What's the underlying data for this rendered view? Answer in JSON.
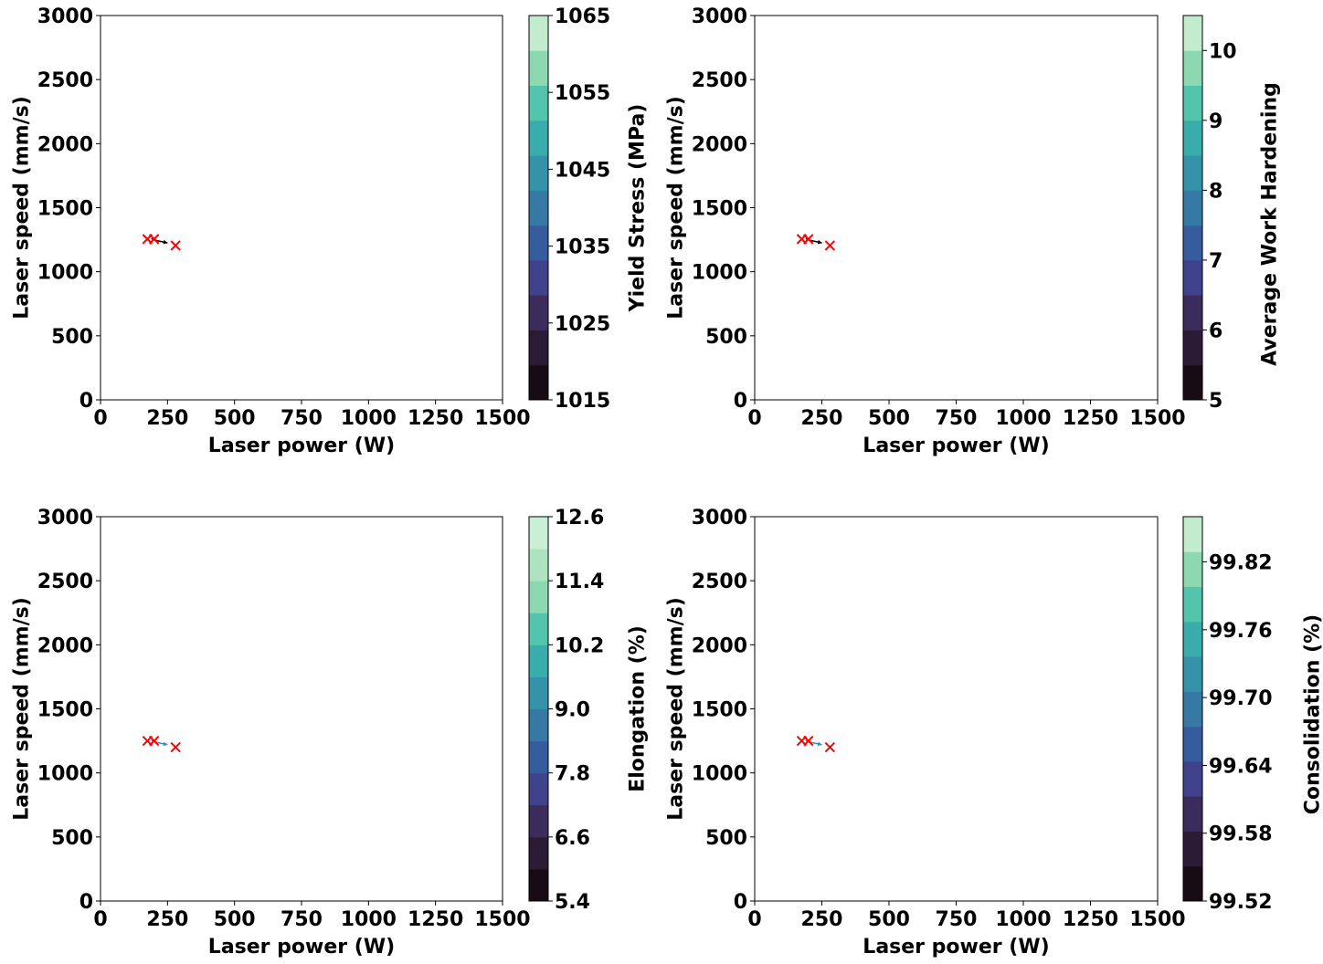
{
  "chart_data": [
    {
      "type": "scatter",
      "xlabel": "Laser power (W)",
      "ylabel": "Laser speed (mm/s)",
      "xlim": [
        0,
        1500
      ],
      "ylim": [
        0,
        3000
      ],
      "xticks": [
        "0",
        "250",
        "500",
        "750",
        "1000",
        "1250",
        "1500"
      ],
      "yticks": [
        "0",
        "500",
        "1000",
        "1500",
        "2000",
        "2500",
        "3000"
      ],
      "points": [
        {
          "x": 175,
          "y": 1255
        },
        {
          "x": 200,
          "y": 1255
        },
        {
          "x": 280,
          "y": 1205
        }
      ],
      "path": [
        {
          "x": 190,
          "y": 1260
        },
        {
          "x": 200,
          "y": 1248
        },
        {
          "x": 250,
          "y": 1225
        }
      ],
      "path_color": "#000000",
      "marker_color": "#ff0000",
      "colorbar": {
        "label": "Yield Stress (MPa)",
        "min": 1015,
        "max": 1065,
        "ticks": [
          "1015",
          "1025",
          "1035",
          "1045",
          "1055",
          "1065"
        ],
        "levels": 10,
        "colors": [
          "#170c14",
          "#2b1b35",
          "#3b2c5b",
          "#40428b",
          "#375c9e",
          "#3579a4",
          "#3493a8",
          "#39acab",
          "#52c5ac",
          "#8bd8b1",
          "#c2eccd"
        ]
      }
    },
    {
      "type": "scatter",
      "xlabel": "Laser power (W)",
      "ylabel": "Laser speed (mm/s)",
      "xlim": [
        0,
        1500
      ],
      "ylim": [
        0,
        3000
      ],
      "xticks": [
        "0",
        "250",
        "500",
        "750",
        "1000",
        "1250",
        "1500"
      ],
      "yticks": [
        "0",
        "500",
        "1000",
        "1500",
        "2000",
        "2500",
        "3000"
      ],
      "points": [
        {
          "x": 175,
          "y": 1255
        },
        {
          "x": 200,
          "y": 1255
        },
        {
          "x": 280,
          "y": 1205
        }
      ],
      "path": [
        {
          "x": 190,
          "y": 1260
        },
        {
          "x": 200,
          "y": 1248
        },
        {
          "x": 250,
          "y": 1225
        }
      ],
      "path_color": "#000000",
      "marker_color": "#ff0000",
      "colorbar": {
        "label": "Average Work Hardening",
        "min": 5,
        "max": 10.5,
        "ticks": [
          "5",
          "6",
          "7",
          "8",
          "9",
          "10"
        ],
        "tick_values": [
          5,
          6,
          7,
          8,
          9,
          10
        ],
        "levels": 11,
        "colors": [
          "#170c14",
          "#2b1b35",
          "#3b2c5b",
          "#40428b",
          "#375c9e",
          "#3579a4",
          "#3493a8",
          "#39acab",
          "#52c5ac",
          "#8bd8b1",
          "#c2eccd"
        ]
      }
    },
    {
      "type": "scatter",
      "xlabel": "Laser power (W)",
      "ylabel": "Laser speed (mm/s)",
      "xlim": [
        0,
        1500
      ],
      "ylim": [
        0,
        3000
      ],
      "xticks": [
        "0",
        "250",
        "500",
        "750",
        "1000",
        "1250",
        "1500"
      ],
      "yticks": [
        "0",
        "500",
        "1000",
        "1500",
        "2000",
        "2500",
        "3000"
      ],
      "points": [
        {
          "x": 175,
          "y": 1250
        },
        {
          "x": 200,
          "y": 1250
        },
        {
          "x": 280,
          "y": 1200
        }
      ],
      "path": [
        {
          "x": 190,
          "y": 1255
        },
        {
          "x": 200,
          "y": 1243
        },
        {
          "x": 250,
          "y": 1220
        }
      ],
      "path_color": "#3a8fb0",
      "marker_color": "#ff0000",
      "colorbar": {
        "label": "Elongation (%)",
        "min": 5.4,
        "max": 12.6,
        "ticks": [
          "5.4",
          "6.6",
          "7.8",
          "9.0",
          "10.2",
          "11.4",
          "12.6"
        ],
        "levels": 12,
        "colors": [
          "#170c14",
          "#2b1b35",
          "#3b2c5b",
          "#40428b",
          "#375c9e",
          "#3579a4",
          "#3493a8",
          "#39acab",
          "#52c5ac",
          "#8bd8b1",
          "#aee3c0",
          "#c9efd4"
        ]
      }
    },
    {
      "type": "scatter",
      "xlabel": "Laser power (W)",
      "ylabel": "Laser speed (mm/s)",
      "xlim": [
        0,
        1500
      ],
      "ylim": [
        0,
        3000
      ],
      "xticks": [
        "0",
        "250",
        "500",
        "750",
        "1000",
        "1250",
        "1500"
      ],
      "yticks": [
        "0",
        "500",
        "1000",
        "1500",
        "2000",
        "2500",
        "3000"
      ],
      "points": [
        {
          "x": 175,
          "y": 1250
        },
        {
          "x": 200,
          "y": 1250
        },
        {
          "x": 280,
          "y": 1200
        }
      ],
      "path": [
        {
          "x": 190,
          "y": 1255
        },
        {
          "x": 200,
          "y": 1243
        },
        {
          "x": 250,
          "y": 1220
        }
      ],
      "path_color": "#3a8fb0",
      "marker_color": "#ff0000",
      "colorbar": {
        "label": "Consolidation (%)",
        "min": 99.52,
        "max": 99.86,
        "ticks": [
          "99.52",
          "99.58",
          "99.64",
          "99.70",
          "99.76",
          "99.82"
        ],
        "tick_values": [
          99.52,
          99.58,
          99.64,
          99.7,
          99.76,
          99.82
        ],
        "levels": 11,
        "colors": [
          "#170c14",
          "#2b1b35",
          "#3b2c5b",
          "#40428b",
          "#375c9e",
          "#3579a4",
          "#3493a8",
          "#39acab",
          "#52c5ac",
          "#8bd8b1",
          "#c2eccd"
        ]
      }
    }
  ]
}
